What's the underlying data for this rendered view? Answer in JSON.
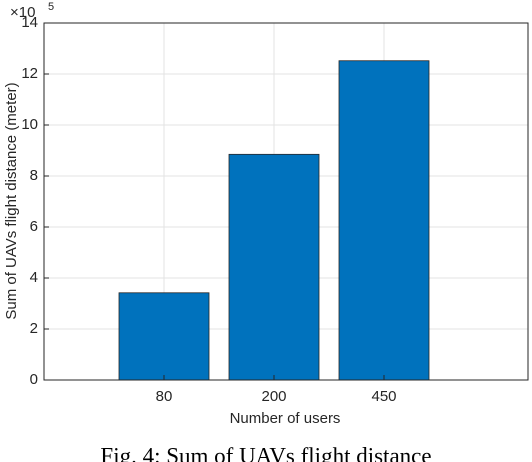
{
  "chart_data": {
    "type": "bar",
    "categories": [
      "80",
      "200",
      "450"
    ],
    "values": [
      3.42,
      8.85,
      12.52
    ],
    "color": "#0072bd",
    "ylim": [
      0,
      14
    ],
    "yticks": [
      0,
      2,
      4,
      6,
      8,
      10,
      12,
      14
    ],
    "y_scale_base": "×10",
    "y_scale_exponent": "5",
    "xlabel": "Number of users",
    "ylabel": "Sum of UAVs flight distance (meter)",
    "grid": true,
    "caption": "Fig. 4: Sum of UAVs flight distance"
  }
}
